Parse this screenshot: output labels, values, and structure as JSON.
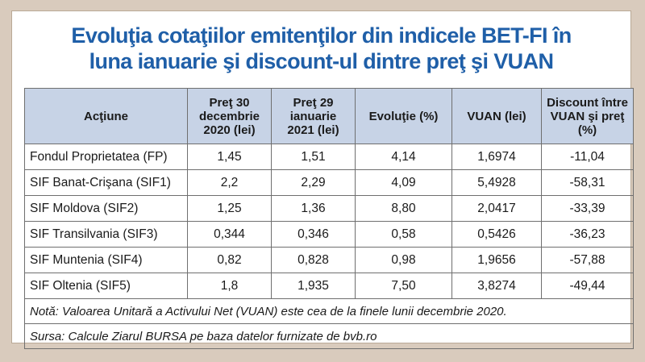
{
  "title": {
    "line1": "Evoluţia cotaţiilor emitenţilor din indicele BET-FI în",
    "line2": "luna ianuarie şi discount-ul dintre preţ şi VUAN"
  },
  "table": {
    "headers": [
      "Acţiune",
      "Preţ 30 decembrie 2020 (lei)",
      "Preţ 29 ianuarie 2021 (lei)",
      "Evoluţie (%)",
      "VUAN (lei)",
      "Discount între VUAN şi preţ (%)"
    ],
    "rows": [
      [
        "Fondul Proprietatea (FP)",
        "1,45",
        "1,51",
        "4,14",
        "1,6974",
        "-11,04"
      ],
      [
        "SIF Banat-Crişana (SIF1)",
        "2,2",
        "2,29",
        "4,09",
        "5,4928",
        "-58,31"
      ],
      [
        "SIF Moldova (SIF2)",
        "1,25",
        "1,36",
        "8,80",
        "2,0417",
        "-33,39"
      ],
      [
        "SIF Transilvania (SIF3)",
        "0,344",
        "0,346",
        "0,58",
        "0,5426",
        "-36,23"
      ],
      [
        "SIF Muntenia (SIF4)",
        "0,82",
        "0,828",
        "0,98",
        "1,9656",
        "-57,88"
      ],
      [
        "SIF Oltenia (SIF5)",
        "1,8",
        "1,935",
        "7,50",
        "3,8274",
        "-49,44"
      ]
    ],
    "note": "Notă: Valoarea Unitară a Activului Net (VUAN) este cea de la finele lunii decembrie 2020.",
    "source": "Sursa: Calcule Ziarul BURSA pe baza datelor furnizate de bvb.ro"
  },
  "colors": {
    "title": "#1f5fa8",
    "header_bg": "#c7d3e6",
    "page_bg": "#d9cbbd"
  }
}
